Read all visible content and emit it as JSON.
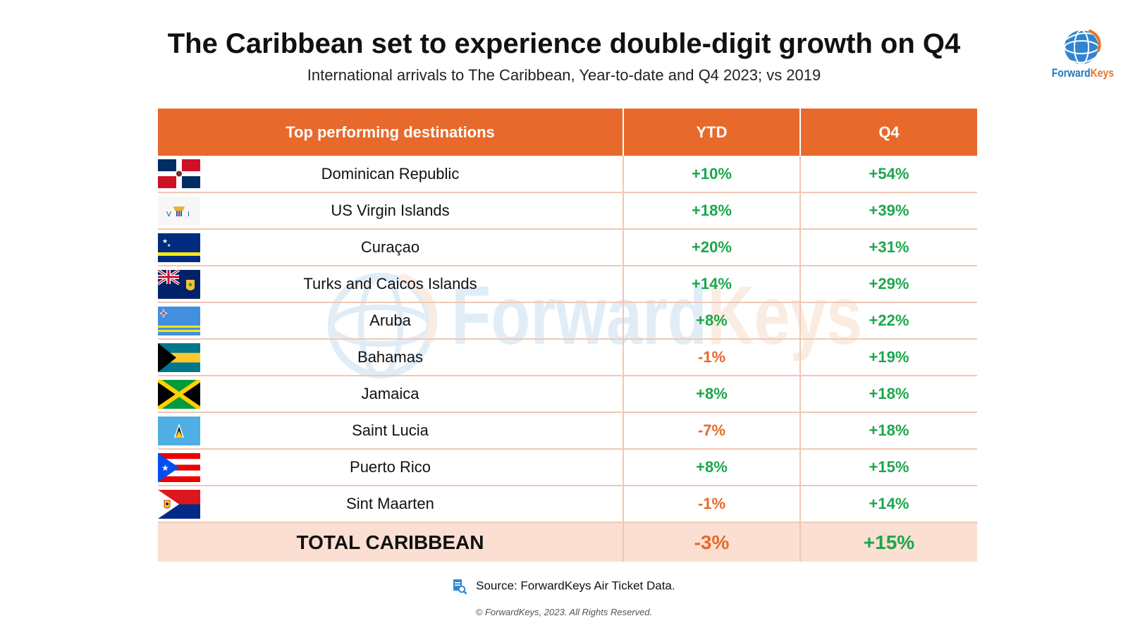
{
  "header": {
    "title": "The Caribbean set to experience double-digit growth on Q4",
    "subtitle": "International arrivals to The Caribbean, Year-to-date and Q4 2023; vs 2019"
  },
  "logo": {
    "brand_part1": "Forward",
    "brand_part2": "Keys",
    "icon": "globe-icon"
  },
  "watermark": {
    "part1": "Forward",
    "part2": "Keys"
  },
  "colors": {
    "header_bg": "#e8692c",
    "positive": "#1ca64c",
    "negative": "#e8692c",
    "total_bg": "#fbdfd2",
    "brand_blue": "#1f78c2",
    "brand_orange": "#e8742c"
  },
  "chart_data": {
    "type": "table",
    "title": "The Caribbean set to experience double-digit growth on Q4",
    "subtitle": "International arrivals to The Caribbean, Year-to-date and Q4 2023; vs 2019",
    "columns": [
      "Top performing destinations",
      "YTD",
      "Q4"
    ],
    "rows": [
      {
        "name": "Dominican Republic",
        "flag": "dominican-republic-flag",
        "ytd": "+10%",
        "q4": "+54%"
      },
      {
        "name": "US Virgin Islands",
        "flag": "us-virgin-islands-flag",
        "ytd": "+18%",
        "q4": "+39%"
      },
      {
        "name": "Curaçao",
        "flag": "curacao-flag",
        "ytd": "+20%",
        "q4": "+31%"
      },
      {
        "name": "Turks and Caicos Islands",
        "flag": "turks-and-caicos-flag",
        "ytd": "+14%",
        "q4": "+29%"
      },
      {
        "name": "Aruba",
        "flag": "aruba-flag",
        "ytd": "+8%",
        "q4": "+22%"
      },
      {
        "name": "Bahamas",
        "flag": "bahamas-flag",
        "ytd": "-1%",
        "q4": "+19%"
      },
      {
        "name": "Jamaica",
        "flag": "jamaica-flag",
        "ytd": "+8%",
        "q4": "+18%"
      },
      {
        "name": "Saint Lucia",
        "flag": "saint-lucia-flag",
        "ytd": "-7%",
        "q4": "+18%"
      },
      {
        "name": "Puerto Rico",
        "flag": "puerto-rico-flag",
        "ytd": "+8%",
        "q4": "+15%"
      },
      {
        "name": "Sint Maarten",
        "flag": "sint-maarten-flag",
        "ytd": "-1%",
        "q4": "+14%"
      }
    ],
    "total": {
      "name": "TOTAL CARIBBEAN",
      "ytd": "-3%",
      "q4": "+15%"
    }
  },
  "footer": {
    "source": "Source: ForwardKeys Air Ticket Data.",
    "source_icon": "document-search-icon",
    "copyright": "© ForwardKeys, 2023. All Rights Reserved."
  }
}
